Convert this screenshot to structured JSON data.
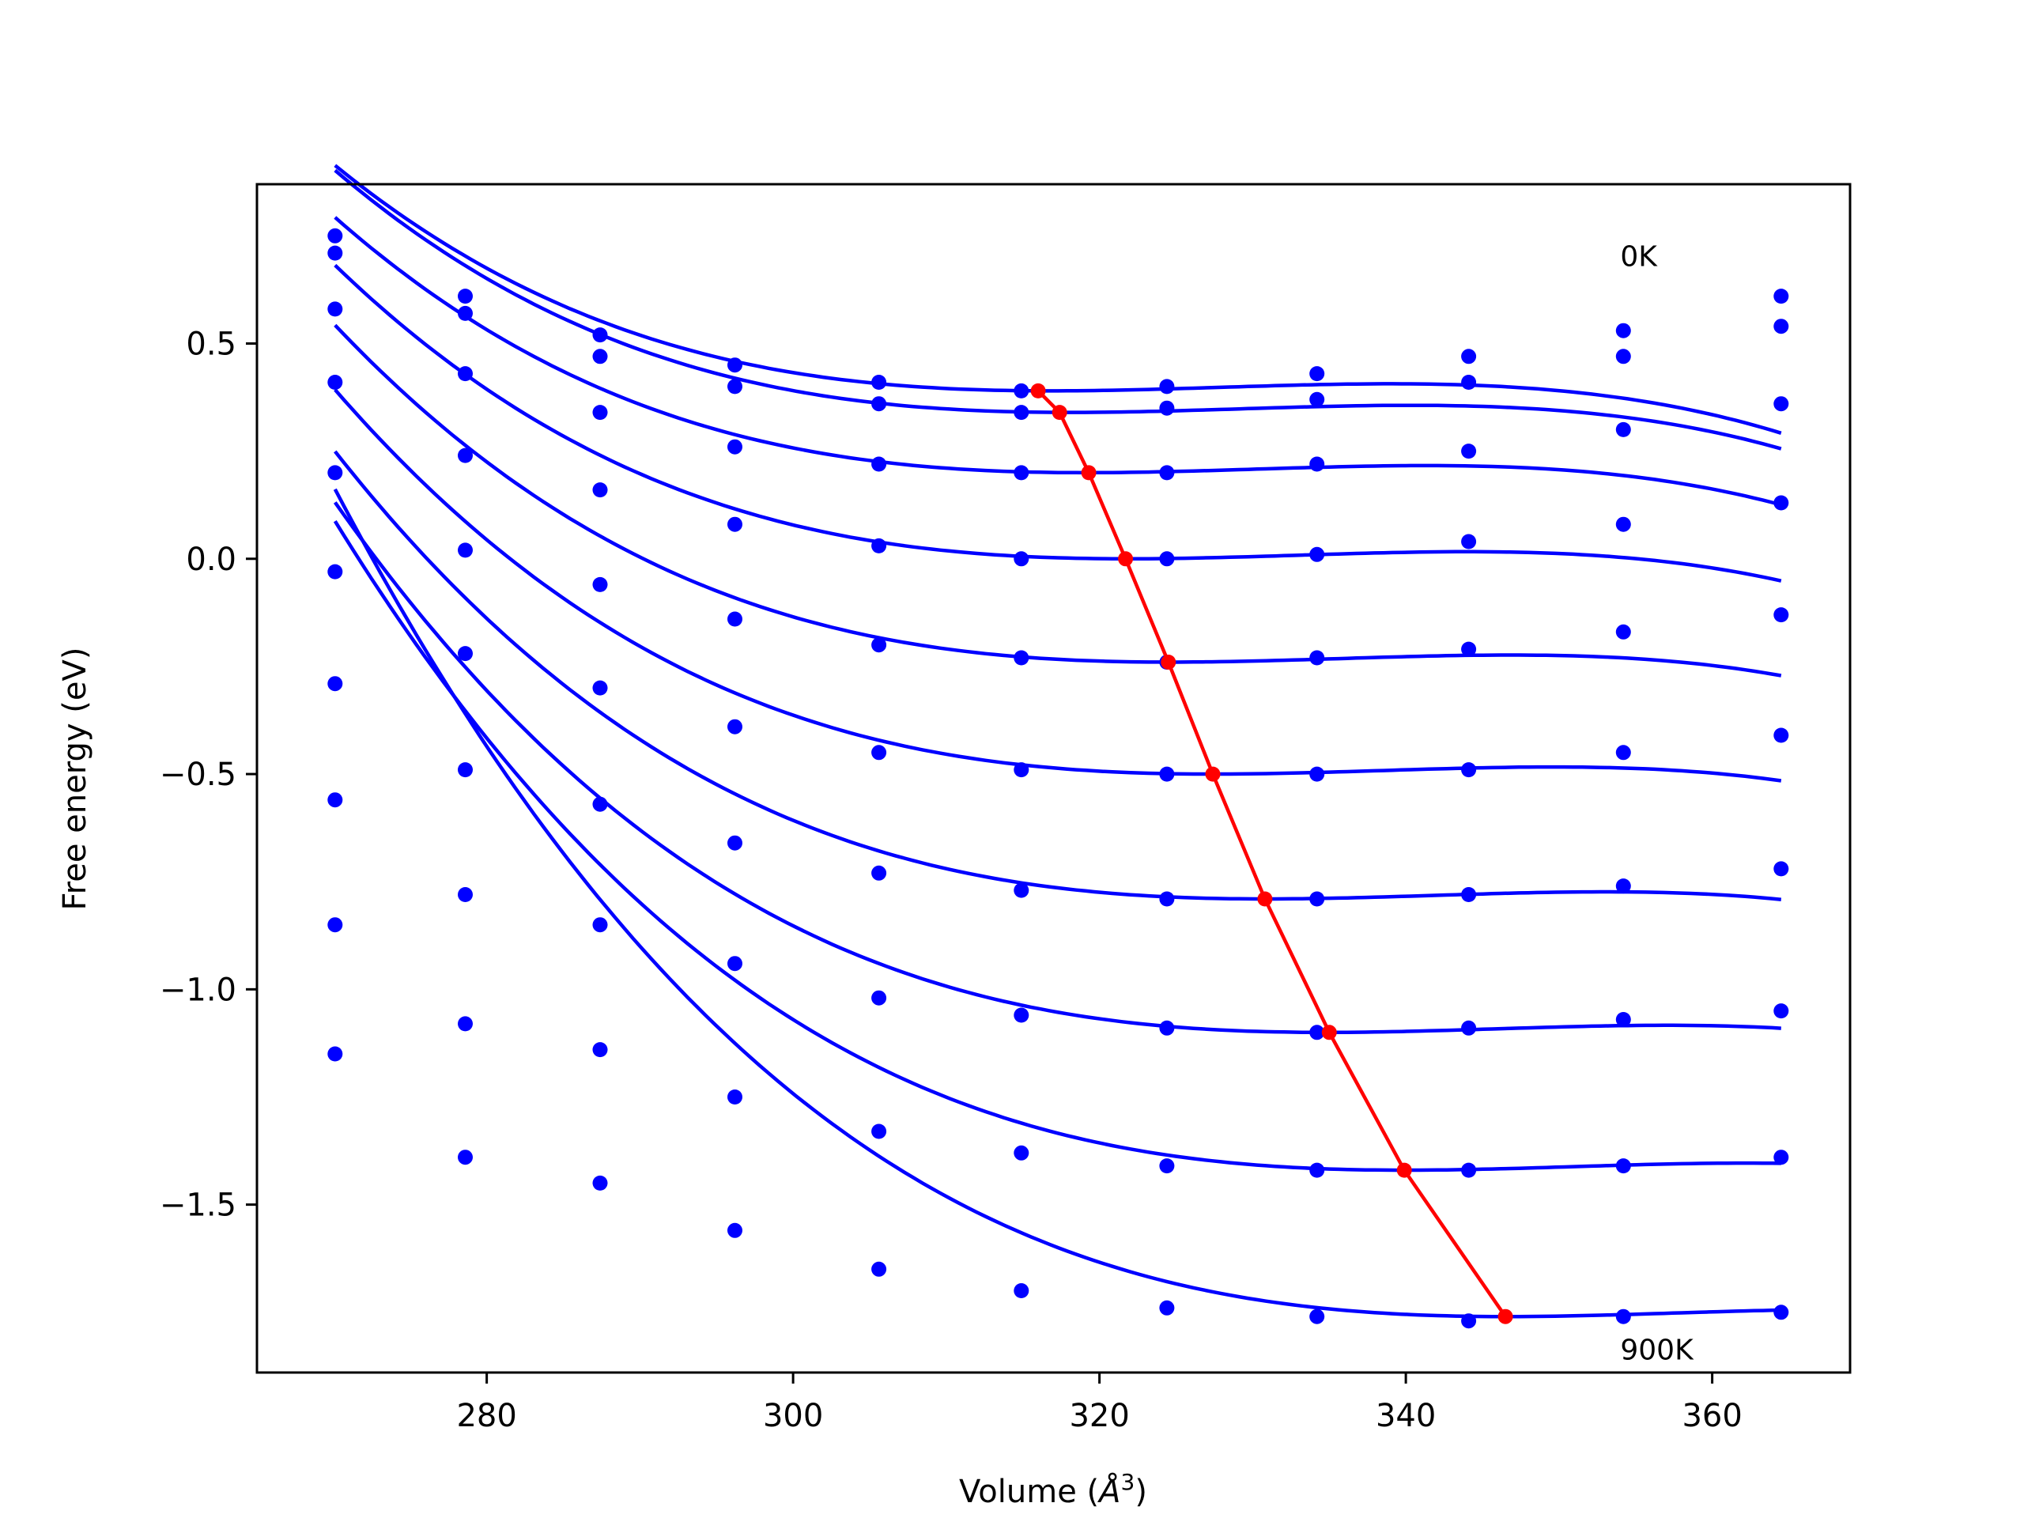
{
  "chart_data": {
    "type": "line",
    "xlabel": "Volume (",
    "xlabel_unit": "Å",
    "xlabel_sup": "3",
    "xlabel_close": ")",
    "ylabel": "Free energy (eV)",
    "xlim": [
      265,
      369
    ],
    "ylim": [
      -1.89,
      0.87
    ],
    "xticks": [
      280,
      300,
      320,
      340,
      360
    ],
    "yticks": [
      0.5,
      0.0,
      -0.5,
      -1.0,
      -1.5
    ],
    "xtick_labels": [
      "280",
      "300",
      "320",
      "340",
      "360"
    ],
    "ytick_labels": [
      "0.5",
      "0.0",
      "−0.5",
      "−1.0",
      "−1.5"
    ],
    "grid": false,
    "colors": {
      "points": "#0000ff",
      "fit": "#0000ff",
      "minimum": "#ff0000"
    },
    "annotations": [
      {
        "text": "0K",
        "x": 354,
        "y": 0.68
      },
      {
        "text": "900K",
        "x": 354,
        "y": -1.86
      }
    ],
    "volumes": [
      270.1,
      278.6,
      287.4,
      296.2,
      305.6,
      314.9,
      324.4,
      334.2,
      344.1,
      354.2,
      364.5
    ],
    "series": [
      {
        "values": [
          0.75,
          0.61,
          0.52,
          0.45,
          0.41,
          0.39,
          0.4,
          0.43,
          0.47,
          0.53,
          0.61
        ],
        "fit": {
          "v0": 316.8,
          "e0": 0.39,
          "a": 0.0001,
          "b": 3e-06
        }
      },
      {
        "values": [
          0.71,
          0.57,
          0.47,
          0.4,
          0.36,
          0.34,
          0.35,
          0.37,
          0.41,
          0.47,
          0.54
        ],
        "fit": {
          "v0": 318.1,
          "e0": 0.34,
          "a": 0.0001,
          "b": 3e-06
        }
      },
      {
        "values": [
          0.58,
          0.43,
          0.34,
          0.26,
          0.22,
          0.2,
          0.2,
          0.22,
          0.25,
          0.3,
          0.36
        ],
        "fit": {
          "v0": 319.1,
          "e0": 0.2,
          "a": 0.0001,
          "b": 3e-06
        }
      },
      {
        "values": [
          0.41,
          0.24,
          0.16,
          0.08,
          0.03,
          0.0,
          0.0,
          0.01,
          0.04,
          0.08,
          0.13
        ],
        "fit": {
          "v0": 321.8,
          "e0": 0.0,
          "a": 0.0001,
          "b": 3e-06
        }
      },
      {
        "values": [
          0.2,
          0.02,
          -0.06,
          -0.14,
          -0.2,
          -0.23,
          -0.24,
          -0.23,
          -0.21,
          -0.17,
          -0.13
        ],
        "fit": {
          "v0": 324.6,
          "e0": -0.24,
          "a": 0.0001,
          "b": 3e-06
        }
      },
      {
        "values": [
          -0.03,
          -0.22,
          -0.3,
          -0.39,
          -0.45,
          -0.49,
          -0.5,
          -0.5,
          -0.49,
          -0.45,
          -0.41
        ],
        "fit": {
          "v0": 327.4,
          "e0": -0.5,
          "a": 0.0001,
          "b": 3e-06
        }
      },
      {
        "values": [
          -0.29,
          -0.49,
          -0.57,
          -0.66,
          -0.73,
          -0.77,
          -0.79,
          -0.79,
          -0.78,
          -0.76,
          -0.72
        ],
        "fit": {
          "v0": 330.8,
          "e0": -0.79,
          "a": 0.0001,
          "b": 3e-06
        }
      },
      {
        "values": [
          -0.56,
          -0.78,
          -0.85,
          -0.94,
          -1.02,
          -1.06,
          -1.09,
          -1.1,
          -1.09,
          -1.07,
          -1.05
        ],
        "fit": {
          "v0": 334.8,
          "e0": -1.1,
          "a": 0.0001,
          "b": 3e-06
        }
      },
      {
        "values": [
          -0.85,
          -1.08,
          -1.14,
          -1.25,
          -1.33,
          -1.38,
          -1.41,
          -1.42,
          -1.42,
          -1.41,
          -1.39
        ],
        "fit": {
          "v0": 339.9,
          "e0": -1.42,
          "a": 0.0001,
          "b": 3e-06
        }
      },
      {
        "values": [
          -1.15,
          -1.39,
          -1.45,
          -1.56,
          -1.65,
          -1.7,
          -1.74,
          -1.76,
          -1.77,
          -1.76,
          -1.75
        ],
        "fit": {
          "v0": 346.5,
          "e0": -1.76,
          "a": 0.0001,
          "b": 3e-06
        }
      }
    ],
    "minima": {
      "x": [
        316.0,
        317.4,
        319.3,
        321.7,
        324.5,
        327.4,
        330.8,
        335.0,
        339.9,
        346.5
      ],
      "y": [
        0.39,
        0.34,
        0.2,
        0.0,
        -0.24,
        -0.5,
        -0.79,
        -1.1,
        -1.42,
        -1.76
      ]
    }
  }
}
